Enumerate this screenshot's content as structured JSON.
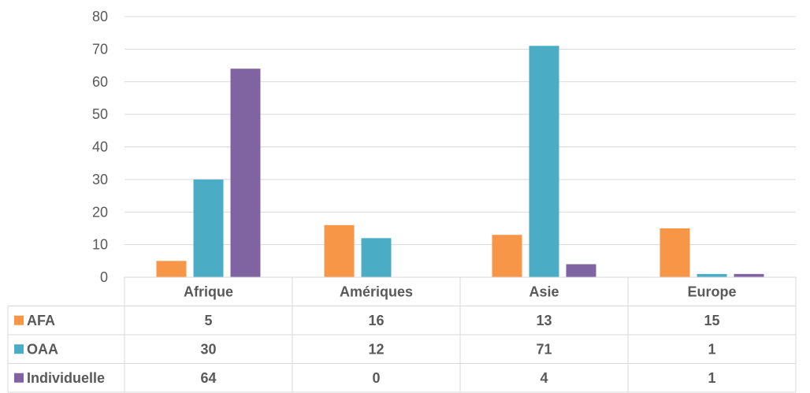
{
  "chart_data": {
    "type": "bar",
    "title": "",
    "xlabel": "",
    "ylabel": "",
    "ylim": [
      0,
      80
    ],
    "yticks": [
      "0",
      "10",
      "20",
      "30",
      "40",
      "50",
      "60",
      "70",
      "80"
    ],
    "grid": true,
    "legend": "data table (left column)",
    "categories": [
      "Afrique",
      "Amériques",
      "Asie",
      "Europe"
    ],
    "series": [
      {
        "name": "AFA",
        "color": "#F79646",
        "values": [
          5,
          16,
          13,
          15
        ]
      },
      {
        "name": "OAA",
        "color": "#4BACC6",
        "values": [
          30,
          12,
          71,
          1
        ]
      },
      {
        "name": "Individuelle",
        "color": "#8064A2",
        "values": [
          64,
          0,
          4,
          1
        ]
      }
    ]
  }
}
